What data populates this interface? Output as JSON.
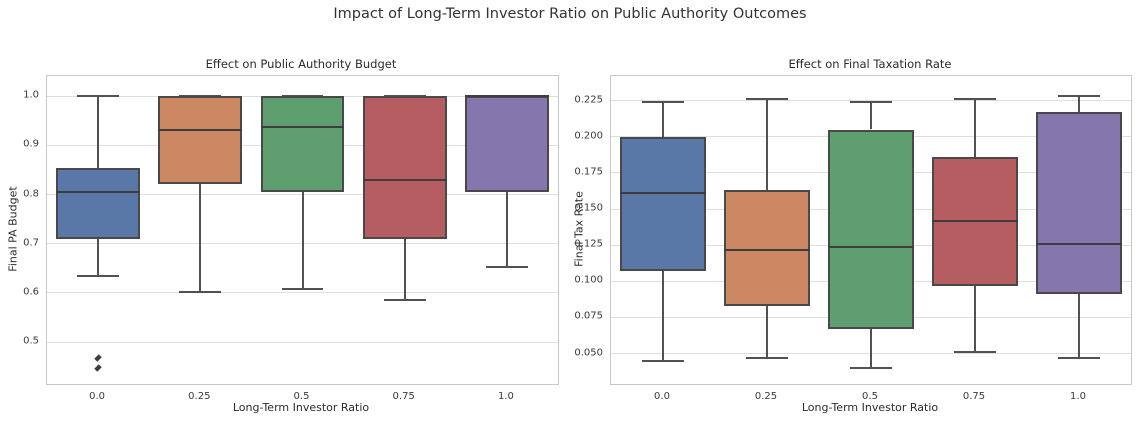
{
  "figure": {
    "suptitle": "Impact of Long-Term Investor Ratio on Public Authority Outcomes"
  },
  "style": {
    "grid_color": "#dedede",
    "spine_color": "#c8c8c8",
    "line_color": "#515151",
    "median_color": "#3d3d3d",
    "text_color": "#2b2b2b"
  },
  "chart_data": [
    {
      "type": "box",
      "title": "Effect on Public Authority Budget",
      "xlabel": "Long-Term Investor Ratio",
      "ylabel": "Final PA Budget",
      "categories": [
        "0.0",
        "0.25",
        "0.5",
        "0.75",
        "1.0"
      ],
      "ylim": [
        0.415,
        1.041
      ],
      "yticks": [
        0.5,
        0.6,
        0.7,
        0.8,
        0.9,
        1.0
      ],
      "ytick_labels": [
        "0.5",
        "0.6",
        "0.7",
        "0.8",
        "0.9",
        "1.0"
      ],
      "grid": true,
      "legend": "none",
      "boxes": [
        {
          "category": "0.0",
          "whislo": 0.635,
          "q1": 0.71,
          "med": 0.806,
          "q3": 0.854,
          "whishi": 1.0,
          "outliers": [
            0.468,
            0.448
          ],
          "color": "#5977A7"
        },
        {
          "category": "0.25",
          "whislo": 0.602,
          "q1": 0.821,
          "med": 0.932,
          "q3": 1.0,
          "whishi": 1.0,
          "outliers": [],
          "color": "#CC8862"
        },
        {
          "category": "0.5",
          "whislo": 0.608,
          "q1": 0.806,
          "med": 0.938,
          "q3": 1.0,
          "whishi": 1.0,
          "outliers": [],
          "color": "#5F9E6F"
        },
        {
          "category": "0.75",
          "whislo": 0.586,
          "q1": 0.709,
          "med": 0.829,
          "q3": 1.0,
          "whishi": 1.0,
          "outliers": [],
          "color": "#B55D60"
        },
        {
          "category": "1.0",
          "whislo": 0.653,
          "q1": 0.806,
          "med": 1.0,
          "q3": 1.0,
          "whishi": 1.0,
          "outliers": [],
          "color": "#8577AD"
        }
      ]
    },
    {
      "type": "box",
      "title": "Effect on Final Taxation Rate",
      "xlabel": "Long-Term Investor Ratio",
      "ylabel": "Final Tax Rate",
      "categories": [
        "0.0",
        "0.25",
        "0.5",
        "0.75",
        "1.0"
      ],
      "ylim": [
        0.029,
        0.242
      ],
      "yticks": [
        0.05,
        0.075,
        0.1,
        0.125,
        0.15,
        0.175,
        0.2,
        0.225
      ],
      "ytick_labels": [
        "0.050",
        "0.075",
        "0.100",
        "0.125",
        "0.150",
        "0.175",
        "0.200",
        "0.225"
      ],
      "grid": true,
      "legend": "none",
      "boxes": [
        {
          "category": "0.0",
          "whislo": 0.045,
          "q1": 0.107,
          "med": 0.161,
          "q3": 0.2,
          "whishi": 0.224,
          "outliers": [],
          "color": "#5977A7"
        },
        {
          "category": "0.25",
          "whislo": 0.047,
          "q1": 0.083,
          "med": 0.122,
          "q3": 0.163,
          "whishi": 0.226,
          "outliers": [],
          "color": "#CC8862"
        },
        {
          "category": "0.5",
          "whislo": 0.04,
          "q1": 0.067,
          "med": 0.124,
          "q3": 0.205,
          "whishi": 0.224,
          "outliers": [],
          "color": "#5F9E6F"
        },
        {
          "category": "0.75",
          "whislo": 0.051,
          "q1": 0.097,
          "med": 0.142,
          "q3": 0.186,
          "whishi": 0.226,
          "outliers": [],
          "color": "#B55D60"
        },
        {
          "category": "1.0",
          "whislo": 0.047,
          "q1": 0.091,
          "med": 0.126,
          "q3": 0.217,
          "whishi": 0.228,
          "outliers": [],
          "color": "#8577AD"
        }
      ]
    }
  ]
}
